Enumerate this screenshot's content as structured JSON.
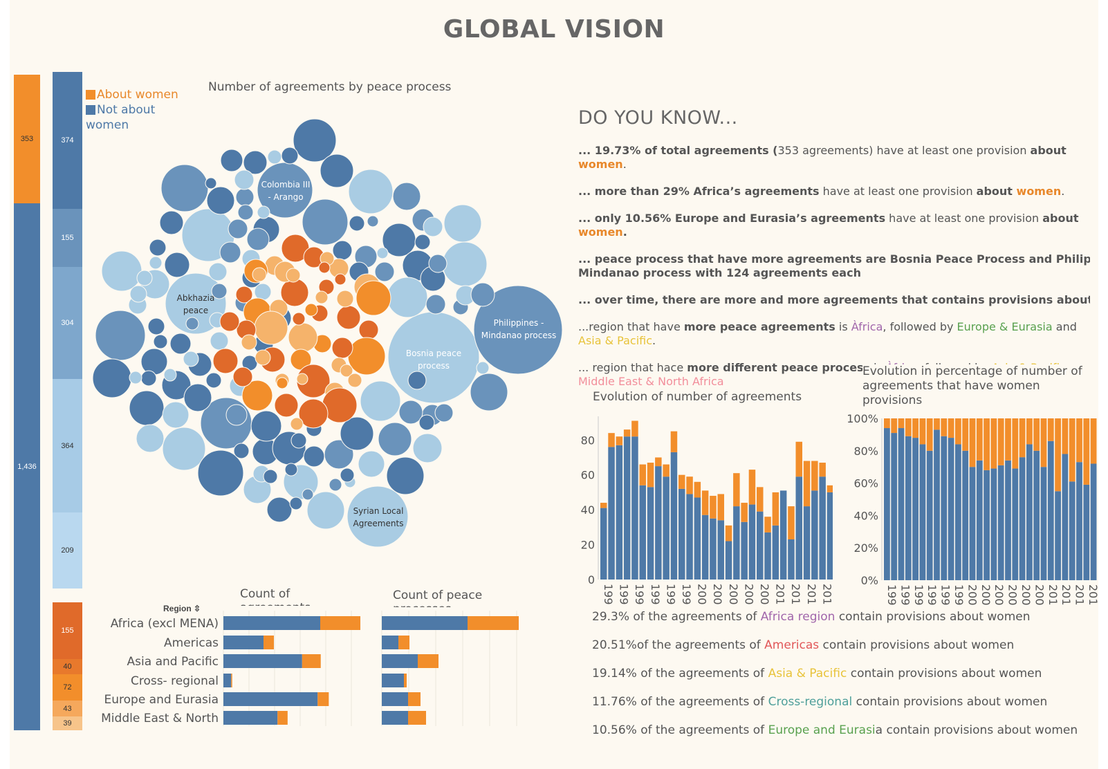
{
  "title": "GLOBAL VISION",
  "colors": {
    "about_women": "#f28e2b",
    "not_about_women": "#4e79a7",
    "light_blue": "#a9cce3",
    "dark_orange": "#e06a2a",
    "light_orange": "#f5b36b"
  },
  "legend": {
    "about_women": "About women",
    "not_about_women_1": "Not about",
    "not_about_women_2": "women"
  },
  "total_bar": [
    {
      "label": "353",
      "value": 353,
      "color": "#f28e2b"
    },
    {
      "label": "1,436",
      "value": 1436,
      "color": "#4e79a7"
    }
  ],
  "region_bar": [
    {
      "label": "374",
      "value": 374,
      "color": "#4e79a7"
    },
    {
      "label": "155",
      "value": 155,
      "color": "#6a93bb"
    },
    {
      "label": "304",
      "value": 304,
      "color": "#7ea7cc"
    },
    {
      "label": "364",
      "value": 364,
      "color": "#a7cbe6"
    },
    {
      "label": "209",
      "value": 209,
      "color": "#b9d8ef"
    },
    {
      "label": "155",
      "value": 155,
      "color": "#e06a2a"
    },
    {
      "label": "40",
      "value": 40,
      "color": "#e8792c"
    },
    {
      "label": "72",
      "value": 72,
      "color": "#f28e2b"
    },
    {
      "label": "43",
      "value": 43,
      "color": "#f5a85c"
    },
    {
      "label": "39",
      "value": 39,
      "color": "#f7c48a"
    }
  ],
  "bubble_chart": {
    "title": "Number of agreements by peace process",
    "labels": {
      "colombia": [
        "Colombia III",
        "- Arango"
      ],
      "abkhazia": [
        "Abkhazia",
        "peace"
      ],
      "philippines": [
        "Philippines -",
        "Mindanao process"
      ],
      "bosnia": [
        "Bosnia peace",
        "process"
      ],
      "syrian": [
        "Syrian Local",
        "Agreements"
      ]
    }
  },
  "know": {
    "title": "DO YOU KNOW...",
    "f1_a": "... 19.73% of total agreements (",
    "f1_b": "353 agreements) have at least one provision ",
    "f1_c": "about",
    "f1_d": "women",
    "f1_e": ".",
    "f2_a": "... more than 29% Africa’s agreements",
    "f2_b": " have at least one provision ",
    "f2_c": "about ",
    "f2_d": "women",
    "f2_e": ".",
    "f3_a": "... only 10.56% Europe and Eurasia’s agreements",
    "f3_b": " have at least one provision ",
    "f3_c": "about",
    "f3_d": "women",
    "f3_e": ".",
    "f4_a": "... peace process that have more agreements are Bosnia Peace Process and Philippines",
    "f4_b": "Mindanao process with 124 agreements each",
    "f5_a": "... over time, there are more and more agreements that contains provisions about wom",
    "f6_a": "...region that have ",
    "f6_b": "more peace agreements",
    "f6_c": " is ",
    "f6_d": "Àfrica",
    "f6_e": ", followed by ",
    "f6_f": "Europe & Eurasia",
    "f6_g": " and",
    "f6_h": "Asia & Pacific",
    "f6_i": ".",
    "f7_a": "... region that hace ",
    "f7_b": "more different peace process",
    "f7_c": " is ",
    "f7_d": "Àfrica",
    "f7_e": ", followed by ",
    "f7_f": "Asia & Pacific",
    "f7_g": " an",
    "f7_h": "Middle East & North Africa"
  },
  "evolution_chart": {
    "title": "Evolution of number of agreements",
    "yticks": [
      "80",
      "60",
      "40",
      "20",
      "0"
    ],
    "xticks": [
      "199",
      "199",
      "199",
      "199",
      "199",
      "199",
      "200",
      "200",
      "200",
      "200",
      "200",
      "201",
      "201",
      "201",
      "201"
    ]
  },
  "pct_chart": {
    "title_1": "Evolution in percentage of number of",
    "title_2": "agreements that have women",
    "title_3": "provisions",
    "yticks": [
      "100%",
      "80%",
      "60%",
      "40%",
      "20%",
      "0%"
    ],
    "xticks": [
      "199",
      "199",
      "199",
      "199",
      "199",
      "199",
      "200",
      "200",
      "200",
      "200",
      "200",
      "200",
      "201",
      "201",
      "201",
      "201"
    ]
  },
  "region_charts": {
    "region_header": "Region",
    "count_agreements_title": "Count of agreements",
    "count_processes_title": "Count of peace processes",
    "regions": [
      "Africa (excl MENA)",
      "Americas",
      "Asia and Pacific",
      "Cross- regional",
      "Europe and Eurasia",
      "Middle East & North"
    ]
  },
  "stats": {
    "s1_a": "29.3% of the agreements of ",
    "s1_b": "Africa region",
    "s1_c": " contain provisions about women",
    "s2_a": "20.51%of the agreements of ",
    "s2_b": "Americas",
    "s2_c": " contain provisions about women",
    "s3_a": "19.14% of the agreements of ",
    "s3_b": "Asia & Pacific",
    "s3_c": " contain provisions about women",
    "s4_a": "11.76% of the agreements of ",
    "s4_b": "Cross-regional",
    "s4_c": " contain provisions about women",
    "s5_a": "10.56% of the agreements of  ",
    "s5_b": "Europe and Eurasi",
    "s5_c": "a contain provisions about women"
  },
  "chart_data": [
    {
      "type": "bar",
      "title": "Evolution of number of agreements",
      "xlabel": "",
      "ylabel": "",
      "ylim": [
        0,
        92
      ],
      "series": [
        {
          "name": "Not about women",
          "values": [
            41,
            76,
            77,
            82,
            82,
            54,
            53,
            65,
            59,
            73,
            52,
            49,
            47,
            37,
            35,
            34,
            22,
            42,
            33,
            43,
            39,
            27,
            31,
            51,
            23,
            59,
            42,
            51,
            59,
            50
          ]
        },
        {
          "name": "About women",
          "values": [
            3,
            8,
            5,
            4,
            9,
            12,
            14,
            5,
            7,
            12,
            8,
            10,
            9,
            14,
            13,
            15,
            9,
            19,
            11,
            20,
            14,
            9,
            19,
            0,
            19,
            20,
            26,
            17,
            8,
            4
          ]
        }
      ]
    },
    {
      "type": "bar",
      "title": "Evolution in percentage of number of agreements that have women provisions",
      "xlabel": "",
      "ylabel": "",
      "ylim": [
        0,
        100
      ],
      "series": [
        {
          "name": "Not about women",
          "values": [
            94,
            91,
            94,
            89,
            88,
            84,
            80,
            93,
            89,
            88,
            84,
            80,
            70,
            74,
            68,
            69,
            71,
            74,
            69,
            76,
            84,
            80,
            70,
            86,
            55,
            78,
            61,
            73,
            59,
            72
          ]
        },
        {
          "name": "About women",
          "values": [
            6,
            9,
            6,
            11,
            12,
            16,
            20,
            7,
            11,
            12,
            16,
            20,
            30,
            26,
            32,
            31,
            29,
            26,
            31,
            24,
            16,
            20,
            30,
            14,
            45,
            22,
            39,
            27,
            41,
            28
          ]
        }
      ]
    },
    {
      "type": "bar",
      "title": "Count of agreements",
      "categories": [
        "Africa (excl MENA)",
        "Americas",
        "Asia and Pacific",
        "Cross- regional",
        "Europe and Eurasia",
        "Middle East & North"
      ],
      "series": [
        {
          "name": "Not about women",
          "values": [
            374,
            155,
            304,
            30,
            364,
            209
          ]
        },
        {
          "name": "About women",
          "values": [
            155,
            40,
            72,
            4,
            43,
            39
          ]
        }
      ]
    },
    {
      "type": "bar",
      "title": "Count of peace processes",
      "categories": [
        "Africa (excl MENA)",
        "Americas",
        "Asia and Pacific",
        "Cross- regional",
        "Europe and Eurasia",
        "Middle East & North"
      ],
      "series": [
        {
          "name": "Not about women",
          "values": [
            62,
            12,
            26,
            16,
            19,
            19
          ]
        },
        {
          "name": "About women",
          "values": [
            37,
            8,
            15,
            2,
            9,
            13
          ]
        }
      ]
    }
  ]
}
